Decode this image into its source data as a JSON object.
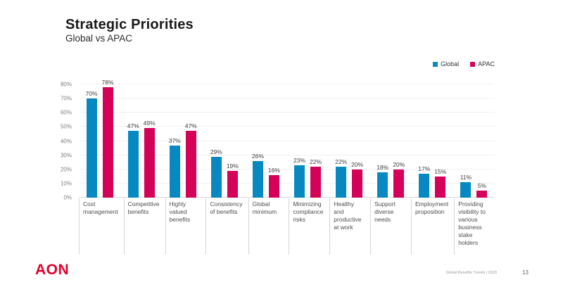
{
  "slide": {
    "title": "Strategic Priorities",
    "subtitle": "Global vs APAC",
    "logo_text": "AON",
    "footer_note": "Global Benefits Trends | 2020",
    "page_number": "13"
  },
  "colors": {
    "title_text": "#1A1A1A",
    "logo_red": "#E4002B",
    "gridline": "#F0F0F0",
    "axis_line": "#D6D6D6",
    "tick_label": "#7F7F7F",
    "value_label": "#404040",
    "category_label": "#4D4D4D"
  },
  "chart_data": {
    "type": "bar",
    "title": "Strategic Priorities — Global vs APAC",
    "categories": [
      "Cost management",
      "Competitive benefits",
      "Highly valued benefits",
      "Consistency of benefits",
      "Global minimum",
      "Minimizing compliance risks",
      "Healthy and productive at work",
      "Support diverse needs",
      "Employment proposition",
      "Providing visibility to various business stake holders"
    ],
    "series": [
      {
        "name": "Global",
        "color": "#0689C0",
        "values": [
          70,
          47,
          37,
          29,
          26,
          23,
          22,
          18,
          17,
          11
        ]
      },
      {
        "name": "APAC",
        "color": "#D50057",
        "values": [
          78,
          49,
          47,
          19,
          16,
          22,
          20,
          20,
          15,
          5
        ]
      }
    ],
    "ylim": [
      0,
      80
    ],
    "yticks": [
      0,
      10,
      20,
      30,
      40,
      50,
      60,
      70,
      80
    ],
    "value_suffix": "%",
    "grid": true,
    "legend_position": "top-right",
    "xlabel": "",
    "ylabel": ""
  }
}
